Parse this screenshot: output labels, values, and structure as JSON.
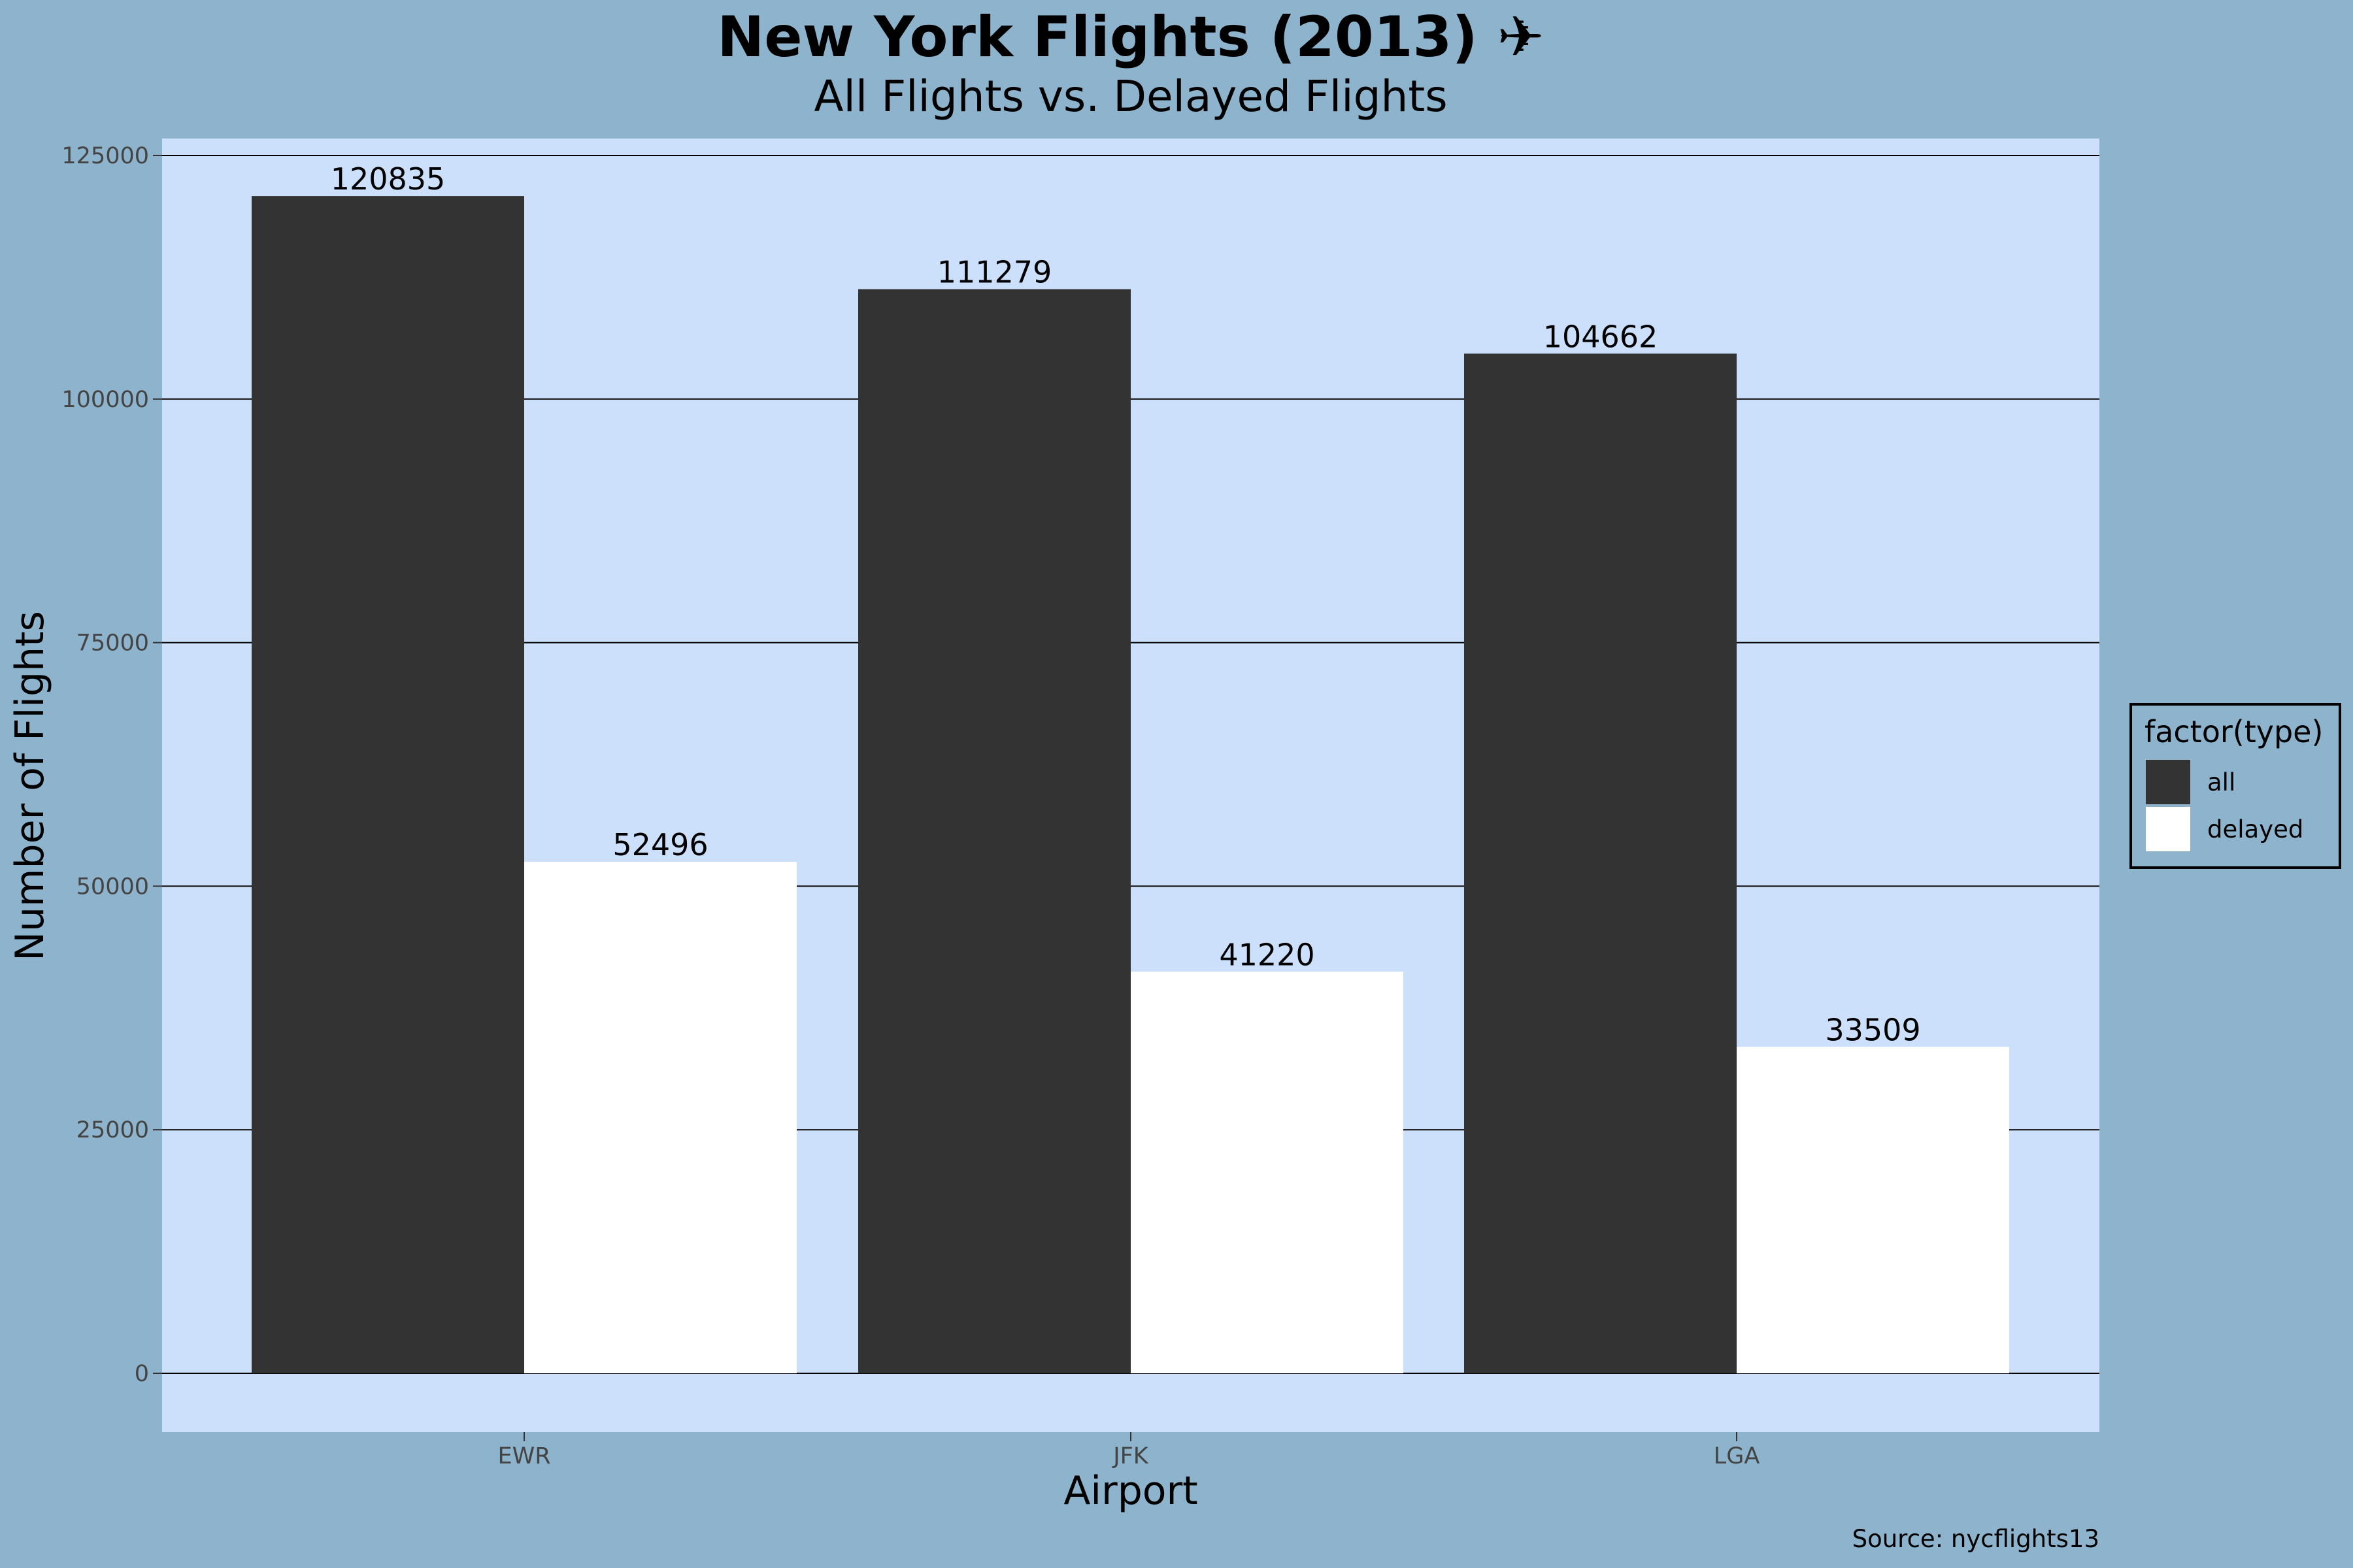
{
  "chart_data": {
    "type": "bar",
    "title": "New York Flights (2013) ✈",
    "subtitle": "All Flights vs. Delayed Flights",
    "xlabel": "Airport",
    "ylabel": "Number of Flights",
    "caption": "Source: nycflights13",
    "categories": [
      "EWR",
      "JFK",
      "LGA"
    ],
    "series": [
      {
        "name": "all",
        "values": [
          120835,
          111279,
          104662
        ],
        "color": "#333333"
      },
      {
        "name": "delayed",
        "values": [
          52496,
          41220,
          33509
        ],
        "color": "#ffffff"
      }
    ],
    "ylim": [
      0,
      125000
    ],
    "yticks": [
      0,
      25000,
      50000,
      75000,
      100000,
      125000
    ],
    "grid": true,
    "legend": {
      "title": "factor(type)",
      "position": "right"
    },
    "colors": {
      "page_background": "#8db4cc",
      "panel_background": "#cce0fc",
      "gridline": "#000000"
    }
  }
}
